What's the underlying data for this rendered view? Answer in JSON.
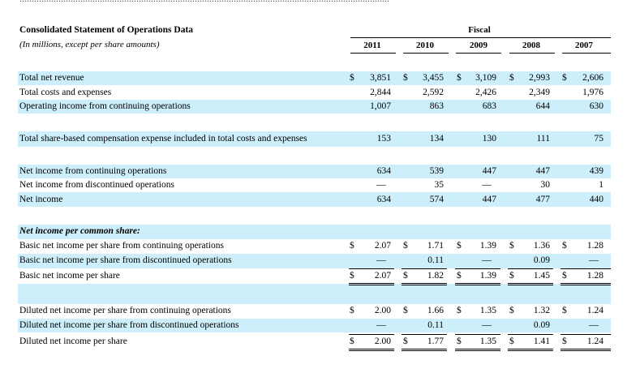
{
  "header": {
    "title": "Consolidated Statement of Operations Data",
    "subtitle": "(In millions, except per share amounts)",
    "fiscal": "Fiscal",
    "years": [
      "2011",
      "2010",
      "2009",
      "2008",
      "2007"
    ]
  },
  "rows": {
    "total_net_revenue": {
      "label": "Total net revenue",
      "currency": [
        "$",
        "$",
        "$",
        "$",
        "$"
      ],
      "values": [
        "3,851",
        "3,455",
        "3,109",
        "2,993",
        "2,606"
      ]
    },
    "total_costs": {
      "label": "Total costs and expenses",
      "values": [
        "2,844",
        "2,592",
        "2,426",
        "2,349",
        "1,976"
      ]
    },
    "operating_income": {
      "label": "Operating income from continuing operations",
      "values": [
        "1,007",
        "863",
        "683",
        "644",
        "630"
      ]
    },
    "share_based_comp": {
      "label": "Total share-based compensation expense included in total costs and expenses",
      "values": [
        "153",
        "134",
        "130",
        "111",
        "75"
      ]
    },
    "net_income_continuing": {
      "label": "Net income from continuing operations",
      "values": [
        "634",
        "539",
        "447",
        "447",
        "439"
      ]
    },
    "net_income_discontinued": {
      "label": "Net income from discontinued operations",
      "values": [
        "—",
        "35",
        "—",
        "30",
        "1"
      ]
    },
    "net_income": {
      "label": "Net income",
      "values": [
        "634",
        "574",
        "447",
        "477",
        "440"
      ]
    },
    "per_share_heading": {
      "label": "Net income per common share:"
    },
    "basic_continuing": {
      "label": "Basic net income per share from continuing operations",
      "currency": [
        "$",
        "$",
        "$",
        "$",
        "$"
      ],
      "values": [
        "2.07",
        "1.71",
        "1.39",
        "1.36",
        "1.28"
      ]
    },
    "basic_discontinued": {
      "label": "Basic net income per share from discontinued operations",
      "values": [
        "—",
        "0.11",
        "—",
        "0.09",
        "—"
      ]
    },
    "basic_total": {
      "label": "Basic net income per share",
      "currency": [
        "$",
        "$",
        "$",
        "$",
        "$"
      ],
      "values": [
        "2.07",
        "1.82",
        "1.39",
        "1.45",
        "1.28"
      ]
    },
    "diluted_continuing": {
      "label": "Diluted net income per share from continuing operations",
      "currency": [
        "$",
        "$",
        "$",
        "$",
        "$"
      ],
      "values": [
        "2.00",
        "1.66",
        "1.35",
        "1.32",
        "1.24"
      ]
    },
    "diluted_discontinued": {
      "label": "Diluted net income per share from discontinued operations",
      "values": [
        "—",
        "0.11",
        "—",
        "0.09",
        "—"
      ]
    },
    "diluted_total": {
      "label": "Diluted net income per share",
      "currency": [
        "$",
        "$",
        "$",
        "$",
        "$"
      ],
      "values": [
        "2.00",
        "1.77",
        "1.35",
        "1.41",
        "1.24"
      ]
    }
  }
}
